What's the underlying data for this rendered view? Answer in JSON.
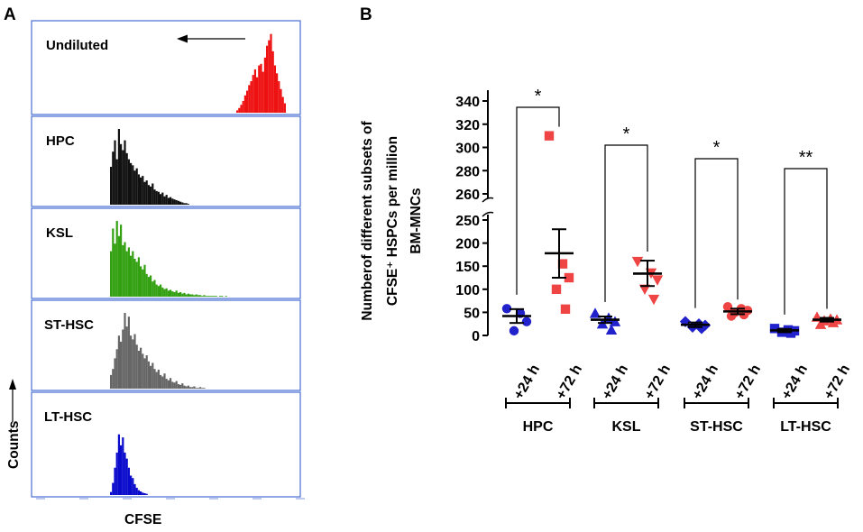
{
  "panel_a": {
    "letter": "A",
    "x_label": "CFSE",
    "y_label": "Counts",
    "histograms": [
      {
        "label": "Undiluted",
        "color": "#ee1111",
        "arrow": true,
        "counts": [
          3,
          6,
          10,
          15,
          22,
          28,
          35,
          40,
          48,
          55,
          45,
          60,
          62,
          52,
          70,
          85,
          92,
          100,
          78,
          60,
          50,
          40,
          30,
          20,
          12
        ]
      },
      {
        "label": "HPC",
        "color": "#111111",
        "arrow": false,
        "counts": [
          50,
          70,
          85,
          60,
          100,
          80,
          72,
          85,
          68,
          60,
          55,
          52,
          45,
          48,
          40,
          36,
          38,
          30,
          32,
          26,
          24,
          28,
          20,
          18,
          17,
          14,
          16,
          11,
          13,
          9,
          10,
          8,
          7,
          6,
          5,
          4,
          3,
          2,
          2,
          1
        ]
      },
      {
        "label": "KSL",
        "color": "#33a012",
        "arrow": false,
        "counts": [
          60,
          90,
          70,
          100,
          80,
          95,
          68,
          72,
          60,
          65,
          54,
          60,
          50,
          46,
          52,
          40,
          36,
          42,
          30,
          26,
          28,
          20,
          22,
          16,
          14,
          16,
          12,
          10,
          11,
          8,
          9,
          7,
          6,
          8,
          5,
          6,
          4,
          5,
          3,
          4,
          3,
          3,
          2,
          3,
          2,
          2,
          1,
          2,
          1,
          1,
          1,
          1,
          1,
          1,
          0,
          1,
          1,
          0,
          1
        ]
      },
      {
        "label": "ST-HSC",
        "color": "#666666",
        "arrow": false,
        "counts": [
          18,
          26,
          40,
          52,
          70,
          62,
          78,
          100,
          82,
          95,
          70,
          65,
          72,
          58,
          50,
          54,
          46,
          40,
          44,
          36,
          30,
          34,
          26,
          22,
          25,
          18,
          16,
          20,
          13,
          11,
          14,
          9,
          8,
          10,
          6,
          5,
          7,
          4,
          3,
          4,
          2,
          2,
          3,
          1,
          1,
          2,
          1,
          1
        ]
      },
      {
        "label": "LT-HSC",
        "color": "#0a0acc",
        "arrow": false,
        "counts": [
          5,
          20,
          45,
          70,
          100,
          82,
          95,
          70,
          60,
          45,
          32,
          28,
          18,
          12,
          8,
          6,
          4,
          3,
          2
        ]
      }
    ]
  },
  "chart_data": {
    "panel_letter": "B",
    "type": "scatter",
    "ylabel_lines": [
      "Numberof different subsets of",
      "CFSE⁺ HSPCs per million",
      "BM-MNCs"
    ],
    "y_axis_broken": true,
    "ylim_lower": [
      0,
      250
    ],
    "ylim_upper": [
      260,
      340
    ],
    "yticks_lower": [
      "0",
      "50",
      "100",
      "150",
      "200",
      "250"
    ],
    "yticks_upper": [
      "260",
      "280",
      "300",
      "320",
      "340"
    ],
    "x_tick_labels": [
      "+24 h",
      "+72 h"
    ],
    "colors": {
      "+24 h": "#2222cc",
      "+72 h": "#ee4444"
    },
    "groups": [
      {
        "name": "HPC",
        "significance": "*",
        "series": [
          {
            "time": "+24 h",
            "marker": "circle",
            "points": [
              58,
              48,
              30,
              10
            ],
            "mean": 42,
            "sem_lower": 27,
            "sem_upper": 57
          },
          {
            "time": "+72 h",
            "marker": "square",
            "points": [
              310,
              155,
              125,
              100,
              57
            ],
            "mean": 178,
            "sem_lower": 125,
            "sem_upper": 230
          }
        ]
      },
      {
        "name": "KSL",
        "significance": "*",
        "series": [
          {
            "time": "+24 h",
            "marker": "triangle-up",
            "points": [
              48,
              38,
              30,
              25,
              12
            ],
            "mean": 34,
            "sem_lower": 27,
            "sem_upper": 41
          },
          {
            "time": "+72 h",
            "marker": "triangle-down",
            "points": [
              160,
              135,
              120,
              100,
              78
            ],
            "mean": 134,
            "sem_lower": 107,
            "sem_upper": 162
          }
        ]
      },
      {
        "name": "ST-HSC",
        "significance": "*",
        "series": [
          {
            "time": "+24 h",
            "marker": "diamond",
            "points": [
              30,
              25,
              22,
              18,
              15
            ],
            "mean": 23,
            "sem_lower": 18,
            "sem_upper": 28
          },
          {
            "time": "+72 h",
            "marker": "circle",
            "points": [
              62,
              58,
              54,
              50,
              45,
              42
            ],
            "mean": 52,
            "sem_lower": 46,
            "sem_upper": 58
          }
        ]
      },
      {
        "name": "LT-HSC",
        "significance": "**",
        "series": [
          {
            "time": "+24 h",
            "marker": "square",
            "points": [
              15,
              12,
              10,
              7,
              5
            ],
            "mean": 11,
            "sem_lower": 7,
            "sem_upper": 14
          },
          {
            "time": "+72 h",
            "marker": "triangle-up",
            "points": [
              40,
              36,
              34,
              32,
              28,
              24
            ],
            "mean": 34,
            "sem_lower": 30,
            "sem_upper": 38
          }
        ]
      }
    ]
  }
}
